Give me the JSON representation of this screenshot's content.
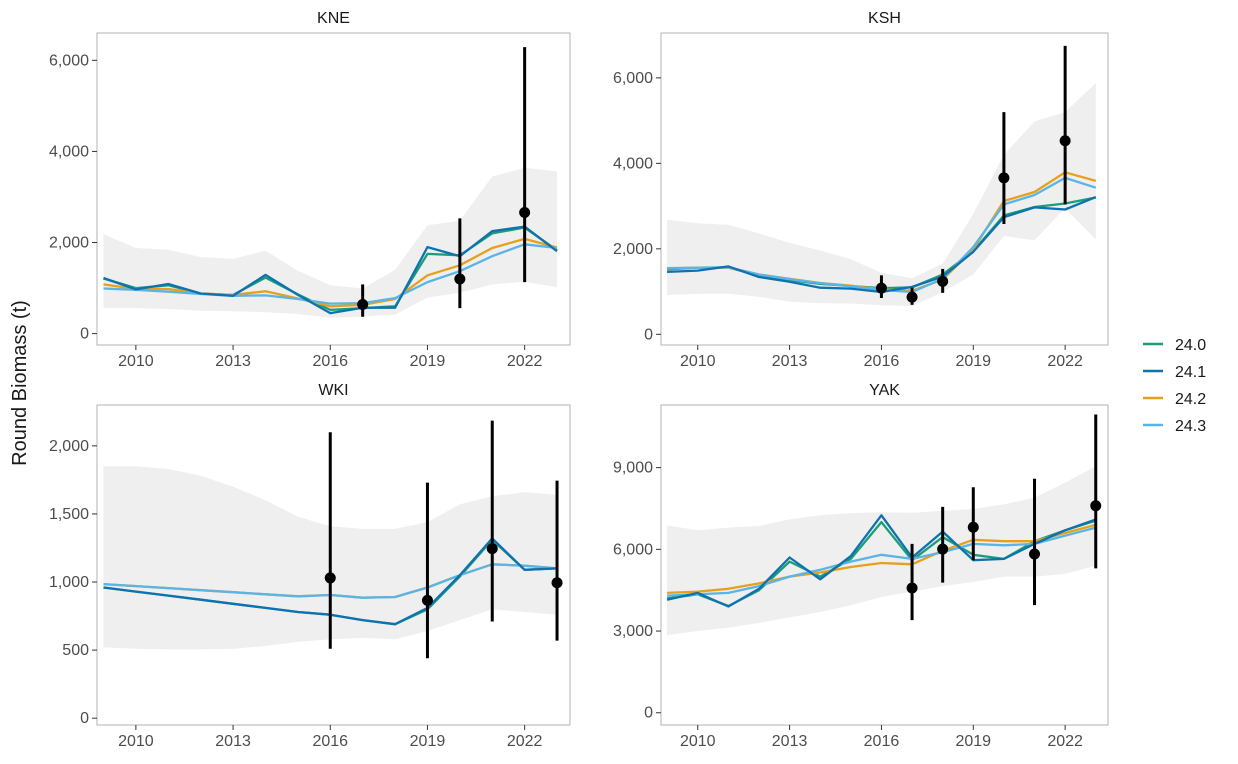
{
  "chart_data": {
    "type": "line",
    "ylabel": "Round Biomass (t)",
    "legend": {
      "position": "right",
      "items": [
        {
          "name": "24.0",
          "color": "#1b9e77"
        },
        {
          "name": "24.1",
          "color": "#0e72b1"
        },
        {
          "name": "24.2",
          "color": "#e6a01b"
        },
        {
          "name": "24.3",
          "color": "#5ab4e5"
        }
      ]
    },
    "grid": false,
    "panels": [
      {
        "title": "KNE",
        "xlim": [
          2008.8,
          2023.4
        ],
        "ylim": [
          -250,
          6600
        ],
        "x_ticks": [
          2010,
          2013,
          2016,
          2019,
          2022
        ],
        "y_ticks": [
          0,
          2000,
          4000,
          6000
        ],
        "y_tick_labels": [
          "0",
          "2,000",
          "4,000",
          "6,000"
        ],
        "band": {
          "x": [
            2009,
            2010,
            2011,
            2012,
            2013,
            2014,
            2015,
            2016,
            2017,
            2018,
            2019,
            2020,
            2021,
            2022,
            2023
          ],
          "upper": [
            2180,
            1880,
            1840,
            1680,
            1640,
            1820,
            1380,
            1060,
            990,
            1400,
            2380,
            2480,
            3450,
            3640,
            3560
          ],
          "lower": [
            560,
            560,
            540,
            500,
            490,
            470,
            430,
            350,
            370,
            420,
            790,
            900,
            1080,
            1140,
            1020
          ]
        },
        "series": [
          {
            "name": "24.0",
            "y": [
              1210,
              1000,
              1060,
              880,
              850,
              1230,
              860,
              520,
              560,
              600,
              1750,
              1720,
              2200,
              2330,
              1830
            ]
          },
          {
            "name": "24.1",
            "y": [
              1220,
              970,
              1090,
              880,
              830,
              1290,
              850,
              450,
              570,
              570,
              1900,
              1700,
              2250,
              2350,
              1810
            ]
          },
          {
            "name": "24.2",
            "y": [
              1080,
              980,
              980,
              880,
              850,
              930,
              770,
              600,
              630,
              760,
              1280,
              1500,
              1880,
              2080,
              1890
            ]
          },
          {
            "name": "24.3",
            "y": [
              990,
              960,
              920,
              870,
              830,
              840,
              760,
              660,
              670,
              780,
              1130,
              1370,
              1700,
              1960,
              1880
            ]
          }
        ],
        "observations": [
          {
            "x": 2017,
            "y": 640,
            "lower": 370,
            "upper": 1080
          },
          {
            "x": 2020,
            "y": 1200,
            "lower": 560,
            "upper": 2530
          },
          {
            "x": 2022,
            "y": 2660,
            "lower": 1130,
            "upper": 6290
          }
        ]
      },
      {
        "title": "KSH",
        "xlim": [
          2008.8,
          2023.4
        ],
        "ylim": [
          -250,
          7050
        ],
        "x_ticks": [
          2010,
          2013,
          2016,
          2019,
          2022
        ],
        "y_ticks": [
          0,
          2000,
          4000,
          6000
        ],
        "y_tick_labels": [
          "0",
          "2,000",
          "4,000",
          "6,000"
        ],
        "band": {
          "x": [
            2009,
            2010,
            2011,
            2012,
            2013,
            2014,
            2015,
            2016,
            2017,
            2018,
            2019,
            2020,
            2021,
            2022,
            2023
          ],
          "upper": [
            2680,
            2600,
            2560,
            2360,
            2140,
            1960,
            1760,
            1440,
            1310,
            1650,
            2820,
            4200,
            4980,
            5200,
            5880
          ],
          "lower": [
            920,
            950,
            950,
            880,
            760,
            730,
            720,
            680,
            660,
            990,
            1400,
            2300,
            2200,
            2950,
            2220
          ]
        },
        "series": [
          {
            "name": "24.0",
            "y": [
              1520,
              1560,
              1560,
              1380,
              1270,
              1180,
              1130,
              1080,
              1100,
              1400,
              1950,
              2780,
              2980,
              3060,
              3200
            ]
          },
          {
            "name": "24.1",
            "y": [
              1460,
              1490,
              1590,
              1340,
              1230,
              1090,
              1070,
              990,
              1110,
              1350,
              1930,
              2740,
              2970,
              2920,
              3210
            ]
          },
          {
            "name": "24.2",
            "y": [
              1540,
              1560,
              1560,
              1400,
              1300,
              1200,
              1140,
              1050,
              1020,
              1280,
              1990,
              3120,
              3330,
              3790,
              3590
            ]
          },
          {
            "name": "24.3",
            "y": [
              1550,
              1560,
              1570,
              1400,
              1290,
              1200,
              1120,
              1040,
              990,
              1300,
              2040,
              3040,
              3260,
              3660,
              3430
            ]
          }
        ],
        "observations": [
          {
            "x": 2016,
            "y": 1080,
            "lower": 850,
            "upper": 1380
          },
          {
            "x": 2017,
            "y": 870,
            "lower": 690,
            "upper": 1090
          },
          {
            "x": 2018,
            "y": 1240,
            "lower": 970,
            "upper": 1530
          },
          {
            "x": 2020,
            "y": 3660,
            "lower": 2580,
            "upper": 5200
          },
          {
            "x": 2022,
            "y": 4530,
            "lower": 3040,
            "upper": 6750
          }
        ]
      },
      {
        "title": "WKI",
        "xlim": [
          2008.8,
          2023.4
        ],
        "ylim": [
          -50,
          2300
        ],
        "x_ticks": [
          2010,
          2013,
          2016,
          2019,
          2022
        ],
        "y_ticks": [
          0,
          500,
          1000,
          1500,
          2000
        ],
        "y_tick_labels": [
          "0",
          "500",
          "1,000",
          "1,500",
          "2,000"
        ],
        "band": {
          "x": [
            2009,
            2010,
            2011,
            2012,
            2013,
            2014,
            2015,
            2016,
            2017,
            2018,
            2019,
            2020,
            2021,
            2022,
            2023
          ],
          "upper": [
            1850,
            1850,
            1830,
            1780,
            1700,
            1600,
            1480,
            1410,
            1390,
            1390,
            1440,
            1570,
            1630,
            1660,
            1640
          ],
          "lower": [
            520,
            510,
            505,
            505,
            510,
            530,
            560,
            580,
            590,
            580,
            640,
            720,
            800,
            780,
            760
          ]
        },
        "series": [
          {
            "name": "24.0",
            "y": [
              960,
              930,
              900,
              870,
              840,
              810,
              780,
              760,
              720,
              690,
              800,
              1040,
              1310,
              1090,
              1100
            ]
          },
          {
            "name": "24.1",
            "y": [
              960,
              930,
              900,
              870,
              840,
              810,
              780,
              760,
              720,
              690,
              810,
              1050,
              1320,
              1090,
              1100
            ]
          },
          {
            "name": "24.2",
            "y": [
              985,
              970,
              955,
              940,
              925,
              910,
              895,
              905,
              885,
              890,
              960,
              1050,
              1130,
              1120,
              1100
            ]
          },
          {
            "name": "24.3",
            "y": [
              985,
              970,
              955,
              940,
              925,
              910,
              895,
              905,
              885,
              890,
              960,
              1050,
              1130,
              1120,
              1100
            ]
          }
        ],
        "observations": [
          {
            "x": 2016,
            "y": 1030,
            "lower": 510,
            "upper": 2100
          },
          {
            "x": 2019,
            "y": 865,
            "lower": 440,
            "upper": 1730
          },
          {
            "x": 2021,
            "y": 1245,
            "lower": 710,
            "upper": 2185
          },
          {
            "x": 2023,
            "y": 995,
            "lower": 570,
            "upper": 1745
          }
        ]
      },
      {
        "title": "YAK",
        "xlim": [
          2008.8,
          2023.4
        ],
        "ylim": [
          -450,
          11300
        ],
        "x_ticks": [
          2010,
          2013,
          2016,
          2019,
          2022
        ],
        "y_ticks": [
          0,
          3000,
          6000,
          9000
        ],
        "y_tick_labels": [
          "0",
          "3,000",
          "6,000",
          "9,000"
        ],
        "band": {
          "x": [
            2009,
            2010,
            2011,
            2012,
            2013,
            2014,
            2015,
            2016,
            2017,
            2018,
            2019,
            2020,
            2021,
            2022,
            2023
          ],
          "upper": [
            6880,
            6700,
            6800,
            6860,
            7100,
            7250,
            7330,
            7360,
            7340,
            7410,
            7480,
            7650,
            7900,
            8450,
            9050
          ],
          "lower": [
            2850,
            3000,
            3120,
            3300,
            3500,
            3700,
            3950,
            4250,
            4450,
            4650,
            4800,
            5000,
            5000,
            5100,
            5400
          ]
        },
        "series": [
          {
            "name": "24.0",
            "y": [
              4200,
              4350,
              3920,
              4500,
              5550,
              5000,
              5650,
              7000,
              5600,
              6450,
              5800,
              5650,
              6300,
              6700,
              7050
            ]
          },
          {
            "name": "24.1",
            "y": [
              4150,
              4400,
              3900,
              4550,
              5700,
              4900,
              5750,
              7250,
              5700,
              6650,
              5600,
              5650,
              6200,
              6700,
              7100
            ]
          },
          {
            "name": "24.2",
            "y": [
              4400,
              4450,
              4550,
              4750,
              5000,
              5150,
              5350,
              5500,
              5450,
              5950,
              6350,
              6300,
              6300,
              6600,
              6900
            ]
          },
          {
            "name": "24.3",
            "y": [
              4300,
              4350,
              4400,
              4650,
              5000,
              5250,
              5550,
              5800,
              5650,
              5900,
              6200,
              6150,
              6200,
              6500,
              6800
            ]
          }
        ],
        "observations": [
          {
            "x": 2017,
            "y": 4580,
            "lower": 3400,
            "upper": 6200
          },
          {
            "x": 2018,
            "y": 6010,
            "lower": 4780,
            "upper": 7560
          },
          {
            "x": 2019,
            "y": 6810,
            "lower": 5600,
            "upper": 8280
          },
          {
            "x": 2021,
            "y": 5830,
            "lower": 3950,
            "upper": 8590
          },
          {
            "x": 2023,
            "y": 7600,
            "lower": 5300,
            "upper": 10950
          }
        ]
      }
    ]
  }
}
